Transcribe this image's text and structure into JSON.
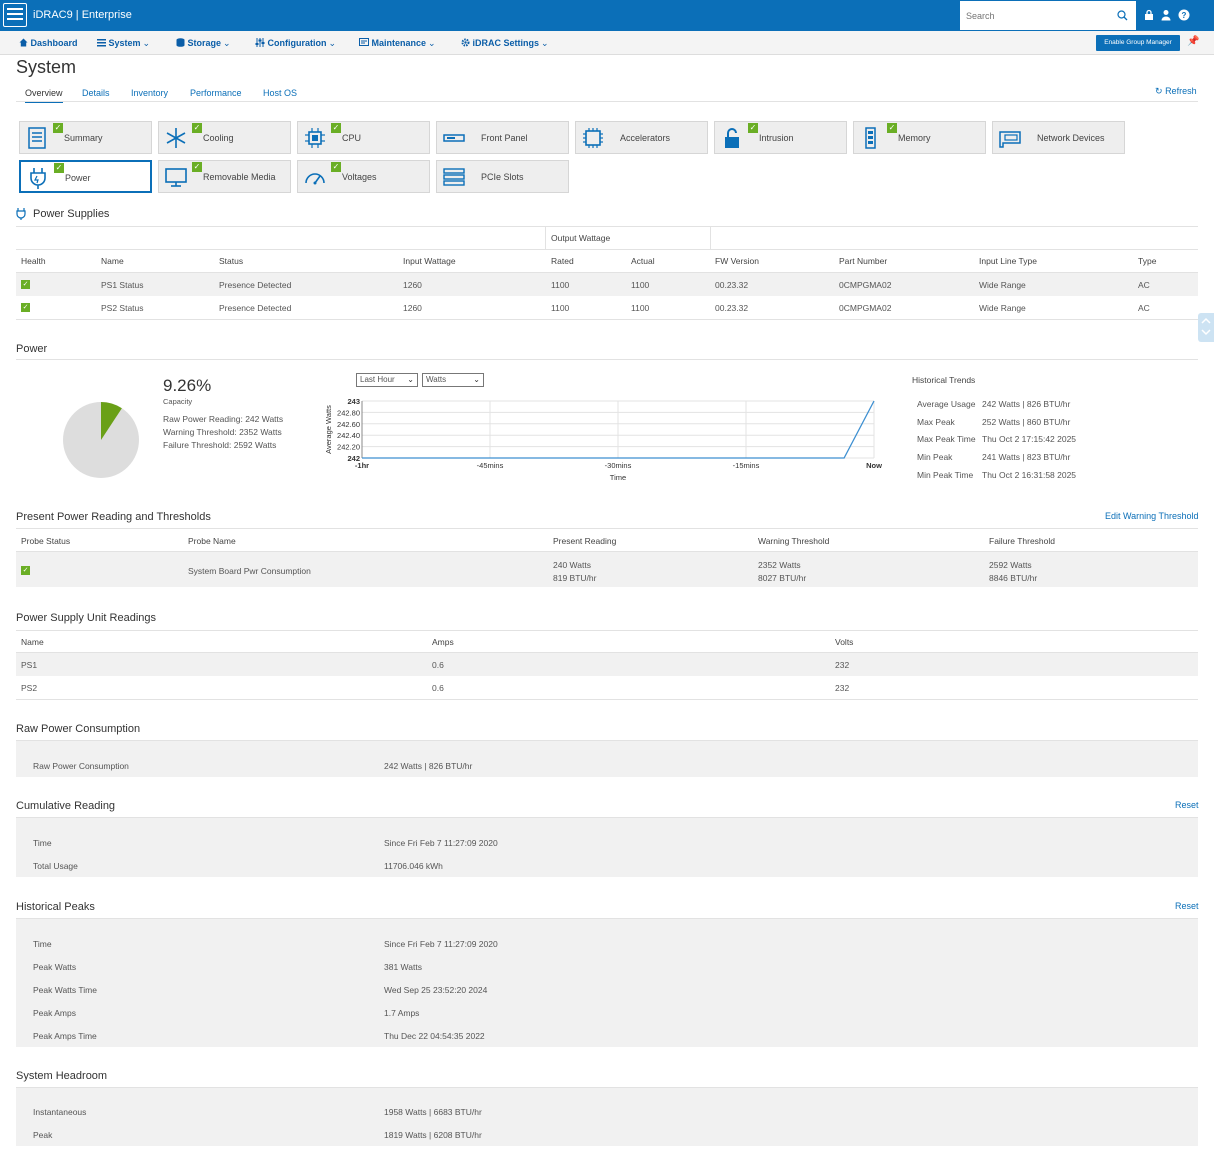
{
  "header": {
    "app_title": "iDRAC9 | Enterprise",
    "search_placeholder": "Search",
    "icons": [
      "server-logo-icon",
      "search-icon",
      "lock-icon",
      "user-icon",
      "help-icon"
    ]
  },
  "nav": {
    "items": [
      "Dashboard",
      "System",
      "Storage",
      "Configuration",
      "Maintenance",
      "iDRAC Settings"
    ],
    "group_manager_label": "Enable Group Manager"
  },
  "page": {
    "title": "System",
    "tabs": [
      "Overview",
      "Details",
      "Inventory",
      "Performance",
      "Host OS"
    ],
    "refresh_label": "Refresh"
  },
  "tiles": [
    {
      "label": "Summary",
      "icon": "summary-icon",
      "status": true
    },
    {
      "label": "Cooling",
      "icon": "snowflake-icon",
      "status": true
    },
    {
      "label": "CPU",
      "icon": "cpu-icon",
      "status": true
    },
    {
      "label": "Front Panel",
      "icon": "front-panel-icon",
      "status": false
    },
    {
      "label": "Accelerators",
      "icon": "accelerator-icon",
      "status": false
    },
    {
      "label": "Intrusion",
      "icon": "padlock-icon",
      "status": true
    },
    {
      "label": "Memory",
      "icon": "memory-icon",
      "status": true
    },
    {
      "label": "Network Devices",
      "icon": "network-card-icon",
      "status": false
    },
    {
      "label": "Power",
      "icon": "power-plug-icon",
      "status": true
    },
    {
      "label": "Removable Media",
      "icon": "monitor-icon",
      "status": true
    },
    {
      "label": "Voltages",
      "icon": "gauge-icon",
      "status": true
    },
    {
      "label": "PCIe Slots",
      "icon": "pcie-icon",
      "status": false
    }
  ],
  "power_supplies": {
    "title": "Power Supplies",
    "group_header": "Output Wattage",
    "columns": [
      "Health",
      "Name",
      "Status",
      "Input Wattage",
      "Rated",
      "Actual",
      "FW Version",
      "Part Number",
      "Input Line Type",
      "Type"
    ],
    "rows": [
      [
        "",
        "PS1 Status",
        "Presence Detected",
        "1260",
        "1100",
        "1100",
        "00.23.32",
        "0CMPGMA02",
        "Wide Range",
        "AC"
      ],
      [
        "",
        "PS2 Status",
        "Presence Detected",
        "1260",
        "1100",
        "1100",
        "00.23.32",
        "0CMPGMA02",
        "Wide Range",
        "AC"
      ]
    ]
  },
  "power": {
    "title": "Power",
    "capacity_value": "9.26%",
    "capacity_fraction": 0.0926,
    "capacity_label": "Capacity",
    "raw_reading": "Raw Power Reading: 242 Watts",
    "warning": "Warning Threshold: 2352 Watts",
    "failure": "Failure Threshold: 2592 Watts",
    "colors": {
      "used": "#6aa017",
      "free": "#dddddd",
      "line": "#3d8fd1"
    },
    "range_select": "Last Hour",
    "unit_select": "Watts"
  },
  "chart_data": {
    "type": "line",
    "title": "",
    "xlabel": "Time",
    "ylabel": "Average Watts",
    "x_tick_labels": [
      "-1hr",
      "-45mins",
      "-30mins",
      "-15mins",
      "Now"
    ],
    "y_tick_labels": [
      "243",
      "242.80",
      "242.60",
      "242.40",
      "242.20",
      "242"
    ],
    "xlim": [
      -60,
      0
    ],
    "ylim": [
      242,
      243
    ],
    "grid": true,
    "series": [
      {
        "x": [
          -60,
          -47,
          -30,
          -15,
          -3.5,
          0
        ],
        "y": [
          242,
          242,
          242,
          242,
          242,
          243
        ]
      }
    ]
  },
  "trends": {
    "title": "Historical Trends",
    "rows": [
      [
        "Average Usage",
        "242 Watts | 826 BTU/hr"
      ],
      [
        "Max Peak",
        "252 Watts | 860 BTU/hr"
      ],
      [
        "Max Peak Time",
        "Thu Oct 2 17:15:42 2025"
      ],
      [
        "Min Peak",
        "241 Watts | 823 BTU/hr"
      ],
      [
        "Min Peak Time",
        "Thu Oct 2 16:31:58 2025"
      ]
    ]
  },
  "present": {
    "title": "Present Power Reading and Thresholds",
    "edit_link": "Edit Warning Threshold",
    "columns": [
      "Probe Status",
      "Probe Name",
      "Present Reading",
      "Warning Threshold",
      "Failure Threshold"
    ],
    "row": {
      "probe_name": "System Board Pwr Consumption",
      "present": [
        "240 Watts",
        "819 BTU/hr"
      ],
      "warning": [
        "2352 Watts",
        "8027 BTU/hr"
      ],
      "failure": [
        "2592 Watts",
        "8846 BTU/hr"
      ]
    }
  },
  "psu_readings": {
    "title": "Power Supply Unit Readings",
    "columns": [
      "Name",
      "Amps",
      "Volts"
    ],
    "rows": [
      [
        "PS1",
        "0.6",
        "232"
      ],
      [
        "PS2",
        "0.6",
        "232"
      ]
    ]
  },
  "raw": {
    "title": "Raw Power Consumption",
    "rows": [
      [
        "Raw Power Consumption",
        "242 Watts | 826 BTU/hr"
      ]
    ]
  },
  "cumulative": {
    "title": "Cumulative Reading",
    "reset_label": "Reset",
    "rows": [
      [
        "Time",
        "Since Fri Feb 7 11:27:09 2020"
      ],
      [
        "Total Usage",
        "11706.046 kWh"
      ]
    ]
  },
  "peaks": {
    "title": "Historical Peaks",
    "reset_label": "Reset",
    "rows": [
      [
        "Time",
        "Since Fri Feb 7 11:27:09 2020"
      ],
      [
        "Peak Watts",
        "381 Watts"
      ],
      [
        "Peak Watts Time",
        "Wed Sep 25 23:52:20 2024"
      ],
      [
        "Peak Amps",
        "1.7 Amps"
      ],
      [
        "Peak Amps Time",
        "Thu Dec 22 04:54:35 2022"
      ]
    ]
  },
  "headroom": {
    "title": "System Headroom",
    "rows": [
      [
        "Instantaneous",
        "1958 Watts | 6683 BTU/hr"
      ],
      [
        "Peak",
        "1819 Watts | 6208 BTU/hr"
      ]
    ]
  }
}
